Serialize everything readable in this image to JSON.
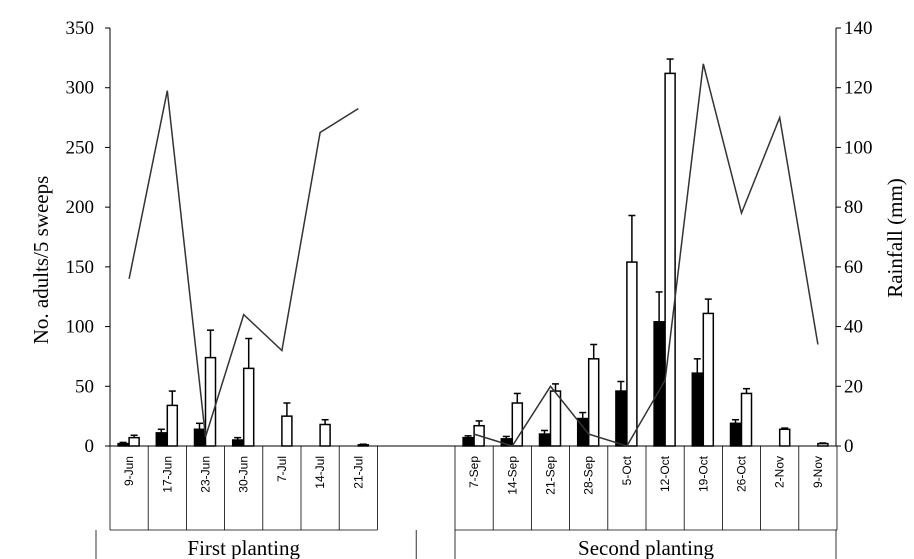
{
  "chart_data": {
    "type": "bar",
    "ylabel": "No. adults/5 sweeps",
    "y2label": "Rainfall (mm)",
    "ylim": [
      0,
      350
    ],
    "y2lim": [
      0,
      140
    ],
    "yticks": [
      "0",
      "50",
      "100",
      "150",
      "200",
      "250",
      "300",
      "350"
    ],
    "y2ticks": [
      "0",
      "20",
      "40",
      "60",
      "80",
      "100",
      "120",
      "140"
    ],
    "groups": [
      {
        "label": "First planting",
        "categories": [
          "9-Jun",
          "17-Jun",
          "23-Jun",
          "30-Jun",
          "7-Jul",
          "14-Jul",
          "21-Jul"
        ],
        "series": [
          {
            "values": [
              2,
              11,
              14,
              5,
              0,
              0,
              0
            ],
            "errors": [
              1,
              3,
              5,
              2,
              0,
              0,
              0
            ]
          },
          {
            "values": [
              7,
              34,
              74,
              65,
              25,
              18,
              1
            ],
            "errors": [
              2,
              12,
              23,
              25,
              11,
              4,
              0.5
            ]
          }
        ],
        "rainfall": [
          56,
          119,
          3,
          44,
          32,
          105,
          113
        ]
      },
      {
        "label": "Second planting",
        "categories": [
          "7-Sep",
          "14-Sep",
          "21-Sep",
          "28-Sep",
          "5-Oct",
          "12-Oct",
          "19-Oct",
          "26-Oct",
          "2-Nov",
          "9-Nov"
        ],
        "series": [
          {
            "values": [
              7,
              6,
              10,
              23,
              46,
              104,
              61,
              19,
              0,
              0
            ],
            "errors": [
              1.5,
              2,
              3,
              5,
              8,
              25,
              12,
              3,
              0,
              0
            ]
          },
          {
            "values": [
              17,
              36,
              46,
              73,
              154,
              312,
              111,
              44,
              14,
              2
            ],
            "errors": [
              4,
              8,
              6,
              12,
              39,
              12,
              12,
              4,
              1,
              0.5
            ]
          }
        ],
        "rainfall": [
          4,
          0,
          20,
          4,
          0,
          22,
          128,
          78,
          110,
          34
        ]
      }
    ]
  }
}
